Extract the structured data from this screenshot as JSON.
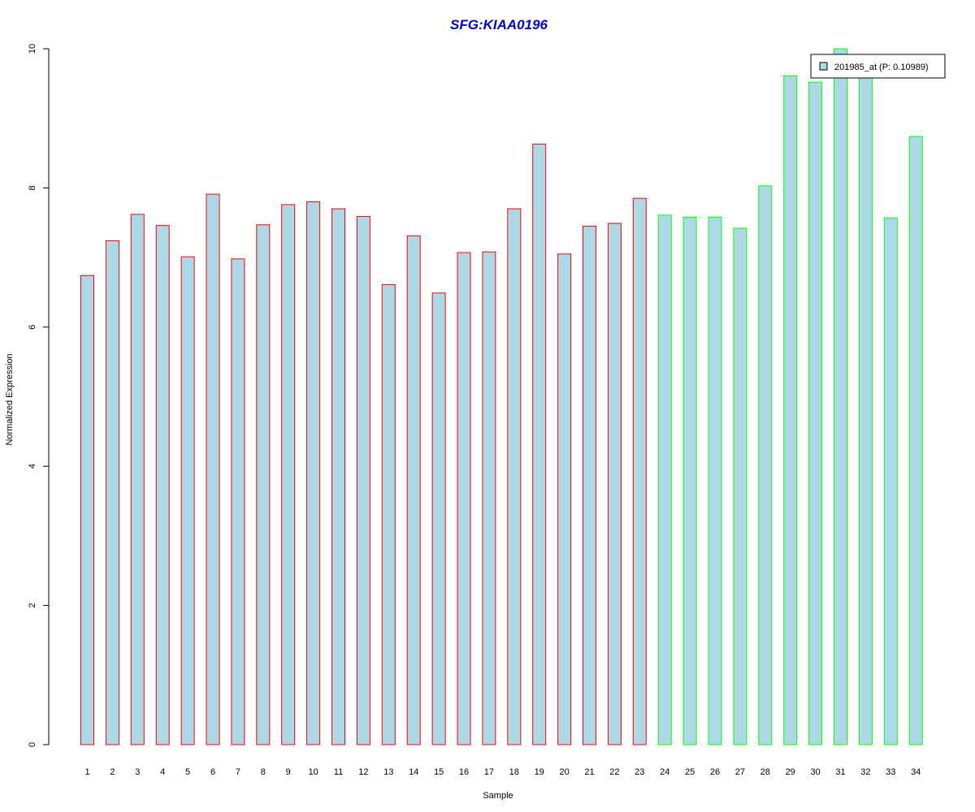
{
  "chart_data": {
    "type": "bar",
    "title": "SFG:KIAA0196",
    "xlabel": "Sample",
    "ylabel": "Normalized Expression",
    "ylim": [
      0,
      10
    ],
    "yticks": [
      0,
      2,
      4,
      6,
      8,
      10
    ],
    "grid": false,
    "legend_position": "top-right",
    "categories": [
      "1",
      "2",
      "3",
      "4",
      "5",
      "6",
      "7",
      "8",
      "9",
      "10",
      "11",
      "12",
      "13",
      "14",
      "15",
      "16",
      "17",
      "18",
      "19",
      "20",
      "21",
      "22",
      "23",
      "24",
      "25",
      "26",
      "27",
      "28",
      "29",
      "30",
      "31",
      "32",
      "33",
      "34"
    ],
    "series": [
      {
        "name": "201985_at (P: 0.10989)",
        "values": [
          6.74,
          7.24,
          7.62,
          7.46,
          7.01,
          7.91,
          6.98,
          7.47,
          7.76,
          7.8,
          7.7,
          7.59,
          6.61,
          7.31,
          6.49,
          7.07,
          7.08,
          7.7,
          8.63,
          7.05,
          7.45,
          7.49,
          7.85,
          7.61,
          7.58,
          7.58,
          7.42,
          8.03,
          9.61,
          9.52,
          10.0,
          9.61,
          7.57,
          8.74
        ]
      }
    ],
    "group_sizes": [
      23,
      11
    ],
    "colors": {
      "fill": "#add8e6",
      "group1_border": "#ff0000",
      "group2_border": "#00ff00",
      "title": "#0000cd",
      "axis": "#000000"
    }
  }
}
